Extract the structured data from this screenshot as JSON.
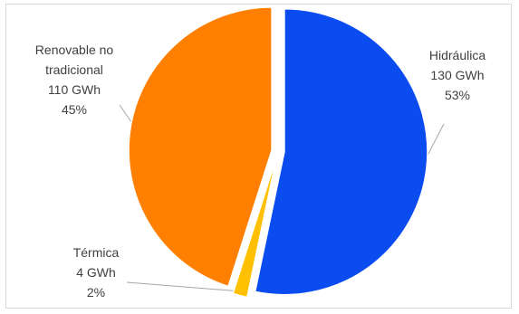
{
  "chart_data": {
    "type": "pie",
    "title": "",
    "exploded": true,
    "slices": [
      {
        "name": "Hidráulica",
        "value": 130,
        "value_label": "130  GWh",
        "percent_label": "53%",
        "color": "#0a4cf0"
      },
      {
        "name": "Térmica",
        "value": 4,
        "value_label": "4  GWh",
        "percent_label": "2%",
        "color": "#ffc000"
      },
      {
        "name": "Renovable no tradicional",
        "name_lines": [
          "Renovable no",
          "tradicional"
        ],
        "value": 110,
        "value_label": "110  GWh",
        "percent_label": "45%",
        "color": "#ff8000"
      }
    ],
    "legend": "none"
  }
}
